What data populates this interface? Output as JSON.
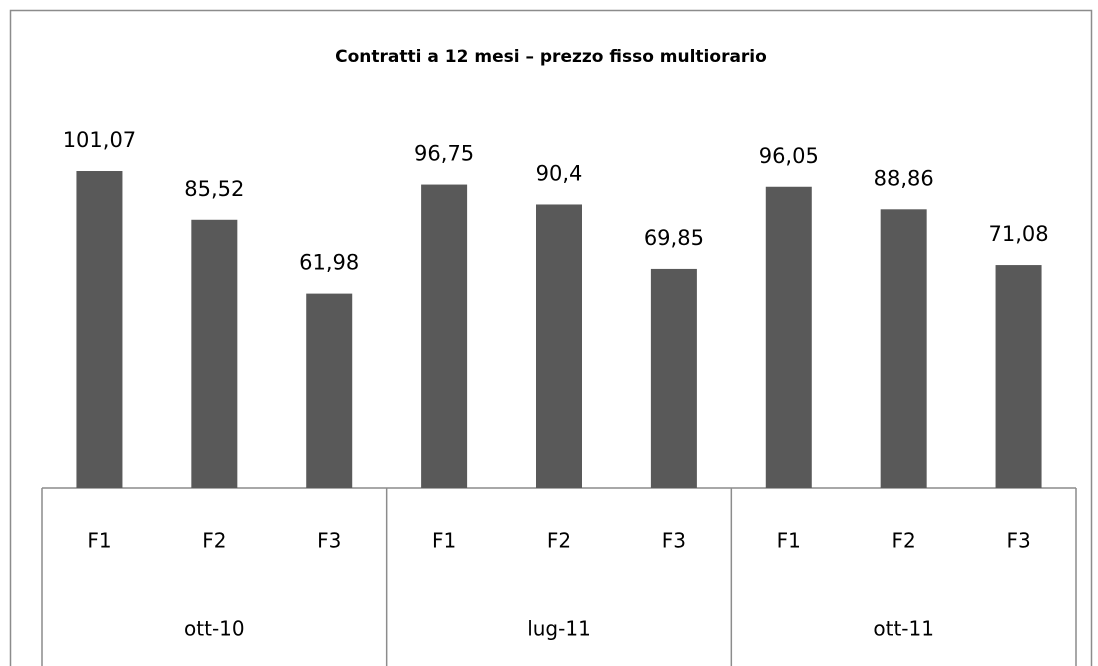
{
  "chart_data": {
    "type": "bar",
    "title": "Contratti a 12 mesi – prezzo fisso multiorario",
    "categories": [
      "F1",
      "F2",
      "F3",
      "F1",
      "F2",
      "F3",
      "F1",
      "F2",
      "F3"
    ],
    "groups": [
      "ott-10",
      "lug-11",
      "ott-11"
    ],
    "values": [
      101.07,
      85.52,
      61.98,
      96.75,
      90.4,
      69.85,
      96.05,
      88.86,
      71.08
    ],
    "value_labels": [
      "101,07",
      "85,52",
      "61,98",
      "96,75",
      "90,4",
      "69,85",
      "96,05",
      "88,86",
      "71,08"
    ],
    "color": "#595959",
    "ylim": [
      0,
      110
    ]
  }
}
